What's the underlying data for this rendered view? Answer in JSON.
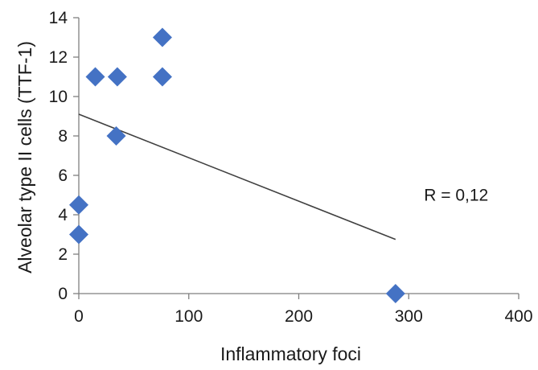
{
  "chart_data": {
    "type": "scatter",
    "title": "",
    "xlabel": "Inflammatory foci",
    "ylabel": "Alveolar type II cells (TTF-1)",
    "xlim": [
      0,
      400
    ],
    "ylim": [
      0,
      14
    ],
    "x_ticks": [
      0,
      100,
      200,
      300,
      400
    ],
    "y_ticks": [
      0,
      2,
      4,
      6,
      8,
      10,
      12,
      14
    ],
    "grid": false,
    "legend": "none",
    "marker": "diamond",
    "colors": {
      "marker": "#4472C4",
      "trendline": "#404040",
      "axis": "#7f7f7f"
    },
    "points": [
      {
        "x": 0,
        "y": 4.5
      },
      {
        "x": 0,
        "y": 3
      },
      {
        "x": 15,
        "y": 11
      },
      {
        "x": 35,
        "y": 11
      },
      {
        "x": 34,
        "y": 8
      },
      {
        "x": 76,
        "y": 13
      },
      {
        "x": 76,
        "y": 11
      },
      {
        "x": 288,
        "y": 0
      }
    ],
    "trendline": {
      "x_start": 0,
      "y_start": 9.1,
      "x_end": 288,
      "y_end": 2.75
    },
    "annotation": {
      "text": "R = 0,12",
      "x": 330,
      "y": 5
    }
  }
}
